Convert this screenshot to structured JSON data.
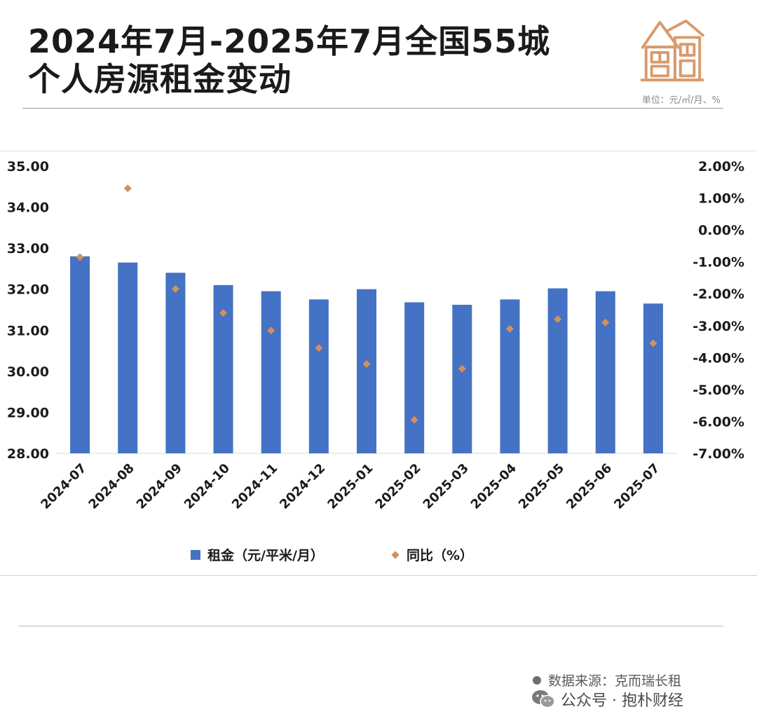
{
  "header": {
    "title_line1": "2024年7月-2025年7月全国55城",
    "title_line2": "个人房源租金变动",
    "unit": "单位：元/㎡/月、%"
  },
  "icons": {
    "logo": "house-icon",
    "wechat": "wechat-icon"
  },
  "colors": {
    "bar": "#4472c4",
    "marker": "#d4905a",
    "icon": "#d99a6c"
  },
  "chart_data": {
    "type": "bar",
    "categories": [
      "2024-07",
      "2024-08",
      "2024-09",
      "2024-10",
      "2024-11",
      "2024-12",
      "2025-01",
      "2025-02",
      "2025-03",
      "2025-04",
      "2025-05",
      "2025-06",
      "2025-07"
    ],
    "series": [
      {
        "name": "租金（元/平米/月）",
        "axis": "left",
        "kind": "bar",
        "values": [
          32.8,
          32.65,
          32.4,
          32.1,
          31.95,
          31.75,
          32.0,
          31.68,
          31.62,
          31.75,
          32.02,
          31.95,
          31.65
        ]
      },
      {
        "name": "同比（%）",
        "axis": "right",
        "kind": "scatter",
        "values": [
          -0.85,
          1.3,
          -1.85,
          -2.6,
          -3.15,
          -3.7,
          -4.2,
          -5.95,
          -4.35,
          -3.1,
          -2.8,
          -2.9,
          -3.55
        ]
      }
    ],
    "y_left": {
      "min": 28,
      "max": 35,
      "ticks": [
        "35.00",
        "34.00",
        "33.00",
        "32.00",
        "31.00",
        "30.00",
        "29.00",
        "28.00"
      ]
    },
    "y_right": {
      "min": -7,
      "max": 2,
      "ticks": [
        "2.00%",
        "1.00%",
        "0.00%",
        "-1.00%",
        "-2.00%",
        "-3.00%",
        "-4.00%",
        "-5.00%",
        "-6.00%",
        "-7.00%"
      ]
    },
    "legend": [
      "租金（元/平米/月）",
      "同比（%）"
    ],
    "legend_position": "bottom",
    "grid": false
  },
  "footer": {
    "source": "数据来源：克而瑞长租",
    "wechat": "公众号 · 抱朴财经"
  }
}
